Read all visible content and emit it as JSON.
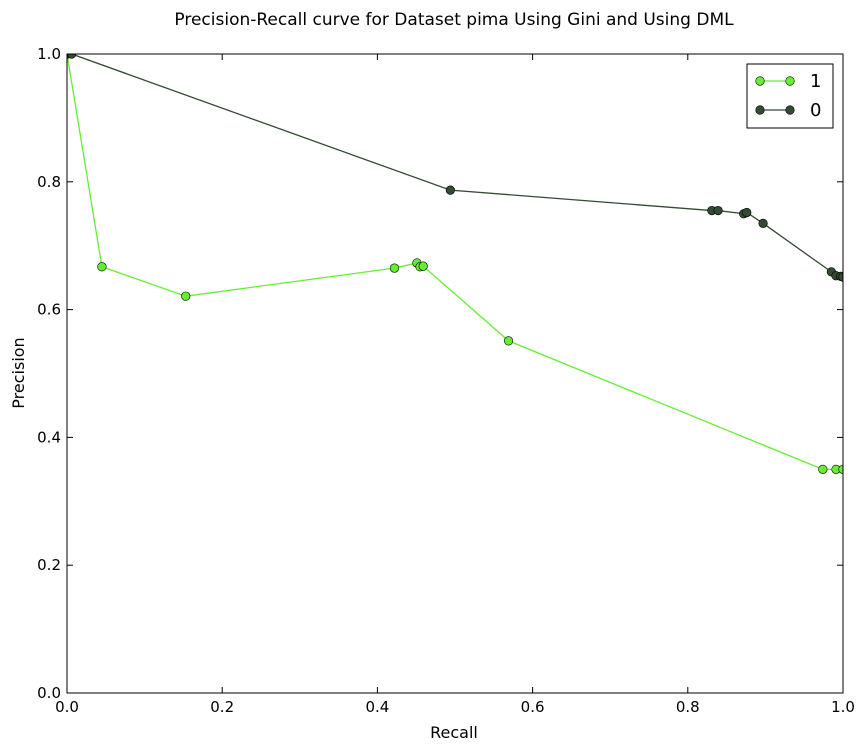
{
  "chart_data": {
    "type": "line",
    "title": "Precision-Recall curve for Dataset pima Using Gini and Using DML",
    "xlabel": "Recall",
    "ylabel": "Precision",
    "xlim": [
      0.0,
      1.0
    ],
    "ylim": [
      0.0,
      1.0
    ],
    "xticks": [
      "0.0",
      "0.2",
      "0.4",
      "0.6",
      "0.8",
      "1.0"
    ],
    "yticks": [
      "0.0",
      "0.2",
      "0.4",
      "0.6",
      "0.8",
      "1.0"
    ],
    "grid": false,
    "legend_position": "top-right",
    "series": [
      {
        "name": "1",
        "color": "#66ee33",
        "x": [
          0.0,
          0.045,
          0.153,
          0.422,
          0.451,
          0.455,
          0.459,
          0.569,
          0.974,
          0.991,
          1.0
        ],
        "y": [
          1.0,
          0.667,
          0.621,
          0.665,
          0.673,
          0.667,
          0.668,
          0.551,
          0.35,
          0.35,
          0.35
        ]
      },
      {
        "name": "0",
        "color": "#334a33",
        "x": [
          0.0,
          0.006,
          0.494,
          0.831,
          0.839,
          0.872,
          0.876,
          0.897,
          0.985,
          0.991,
          0.997,
          1.0
        ],
        "y": [
          1.0,
          1.0,
          0.787,
          0.755,
          0.755,
          0.75,
          0.752,
          0.735,
          0.659,
          0.653,
          0.652,
          0.651
        ]
      }
    ]
  }
}
